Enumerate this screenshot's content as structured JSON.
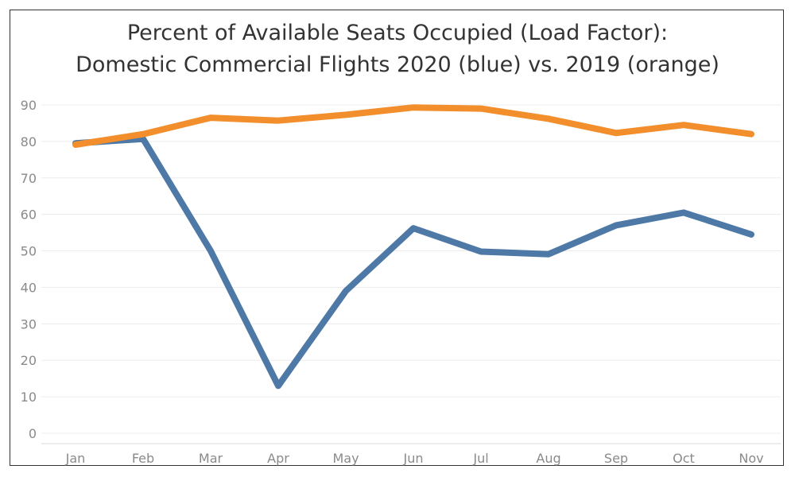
{
  "chart_data": {
    "type": "line",
    "title_line1": "Percent of Available Seats Occupied (Load Factor):",
    "title_line2": "Domestic Commercial Flights 2020 (blue) vs. 2019 (orange)",
    "xlabel": "",
    "ylabel": "",
    "categories": [
      "Jan",
      "Feb",
      "Mar",
      "Apr",
      "May",
      "Jun",
      "Jul",
      "Aug",
      "Sep",
      "Oct",
      "Nov"
    ],
    "yticks": [
      0,
      10,
      20,
      30,
      40,
      50,
      60,
      70,
      80,
      90
    ],
    "ylim": [
      0,
      90
    ],
    "grid": true,
    "series": [
      {
        "color": "#4e79a7",
        "values": [
          79.5,
          80.7,
          50,
          13,
          39,
          56.2,
          49.8,
          49.1,
          57,
          60.5,
          54.5
        ]
      },
      {
        "color": "#f28e2b",
        "values": [
          79.1,
          82,
          86.5,
          85.7,
          87.3,
          89.3,
          89,
          86.2,
          82.3,
          84.5,
          82
        ]
      }
    ]
  }
}
